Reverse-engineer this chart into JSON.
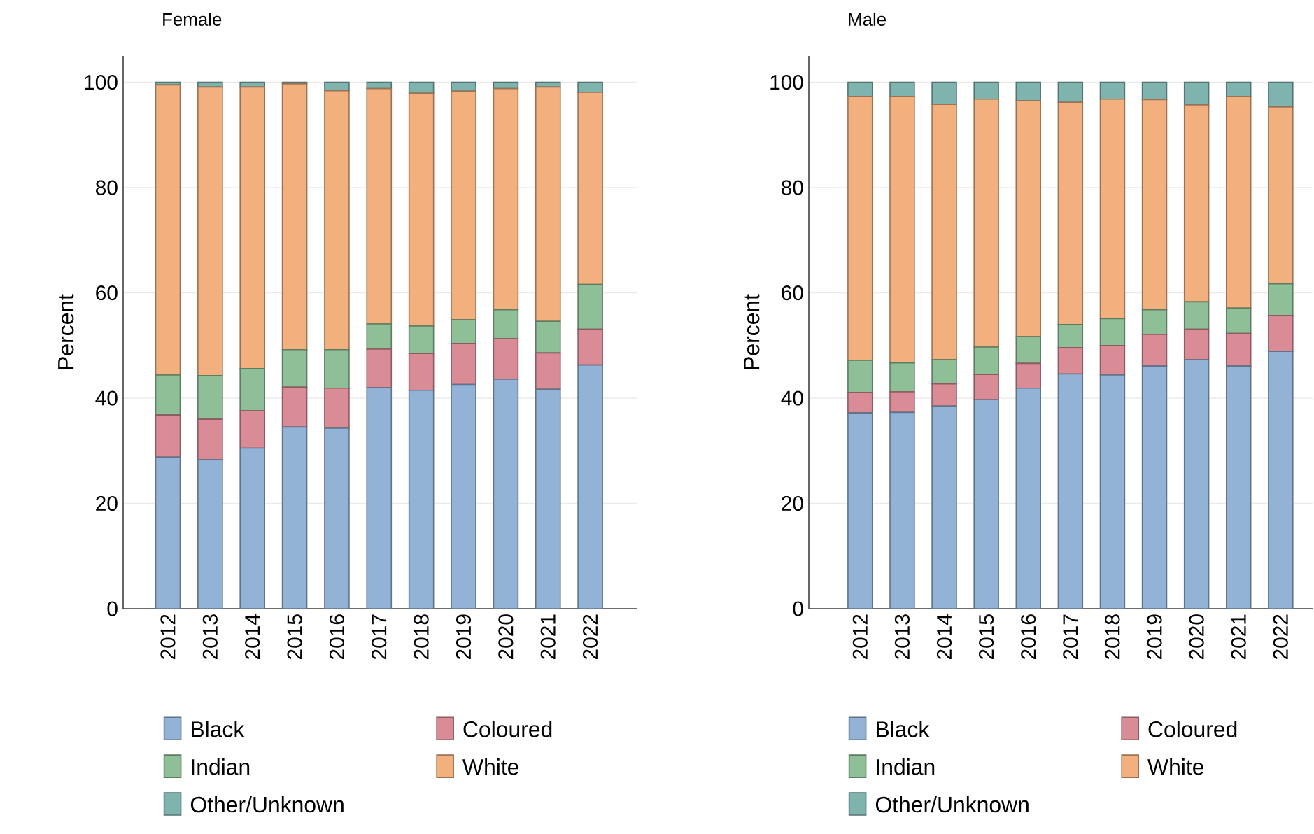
{
  "chart_data": [
    {
      "type": "bar",
      "title": "Female",
      "ylabel": "Percent",
      "stacked": true,
      "grid": "y",
      "legend": "bottom",
      "categories": [
        "2012",
        "2013",
        "2014",
        "2015",
        "2016",
        "2017",
        "2018",
        "2019",
        "2020",
        "2021",
        "2022"
      ],
      "ylim": [
        0,
        105
      ],
      "yticks": [
        0,
        20,
        40,
        60,
        80,
        100
      ],
      "series": [
        {
          "name": "Black",
          "color": "#92b3d6",
          "values": [
            28.8,
            28.3,
            30.5,
            34.5,
            34.3,
            42.0,
            41.5,
            42.6,
            43.6,
            41.7,
            46.3
          ]
        },
        {
          "name": "Coloured",
          "color": "#d98b96",
          "values": [
            8.0,
            7.7,
            7.1,
            7.6,
            7.6,
            7.3,
            7.0,
            7.8,
            7.7,
            6.9,
            6.8
          ]
        },
        {
          "name": "Indian",
          "color": "#8fbf96",
          "values": [
            7.6,
            8.3,
            8.0,
            7.1,
            7.3,
            4.8,
            5.2,
            4.5,
            5.5,
            6.0,
            8.5
          ]
        },
        {
          "name": "White",
          "color": "#f2b07f",
          "values": [
            55.1,
            54.8,
            53.5,
            50.5,
            49.2,
            44.7,
            44.2,
            43.4,
            42.0,
            44.5,
            36.5
          ]
        },
        {
          "name": "Other/Unknown",
          "color": "#7fb3ae",
          "values": [
            0.5,
            0.9,
            0.9,
            0.3,
            1.6,
            1.2,
            2.1,
            1.7,
            1.2,
            0.9,
            1.9
          ]
        }
      ]
    },
    {
      "type": "bar",
      "title": "Male",
      "ylabel": "Percent",
      "stacked": true,
      "grid": "y",
      "legend": "bottom",
      "categories": [
        "2012",
        "2013",
        "2014",
        "2015",
        "2016",
        "2017",
        "2018",
        "2019",
        "2020",
        "2021",
        "2022"
      ],
      "ylim": [
        0,
        105
      ],
      "yticks": [
        0,
        20,
        40,
        60,
        80,
        100
      ],
      "series": [
        {
          "name": "Black",
          "color": "#92b3d6",
          "values": [
            37.2,
            37.3,
            38.5,
            39.7,
            41.9,
            44.6,
            44.4,
            46.1,
            47.3,
            46.1,
            48.9
          ]
        },
        {
          "name": "Coloured",
          "color": "#d98b96",
          "values": [
            3.9,
            3.9,
            4.2,
            4.8,
            4.7,
            5.0,
            5.6,
            6.0,
            5.8,
            6.2,
            6.8
          ]
        },
        {
          "name": "Indian",
          "color": "#8fbf96",
          "values": [
            6.1,
            5.5,
            4.6,
            5.2,
            5.1,
            4.4,
            5.1,
            4.7,
            5.2,
            4.8,
            6.0
          ]
        },
        {
          "name": "White",
          "color": "#f2b07f",
          "values": [
            50.1,
            50.6,
            48.5,
            47.1,
            44.8,
            42.2,
            41.7,
            39.9,
            37.4,
            40.2,
            33.6
          ]
        },
        {
          "name": "Other/Unknown",
          "color": "#7fb3ae",
          "values": [
            2.7,
            2.7,
            4.2,
            3.2,
            3.5,
            3.8,
            3.2,
            3.3,
            4.3,
            2.7,
            4.7
          ]
        }
      ]
    }
  ]
}
